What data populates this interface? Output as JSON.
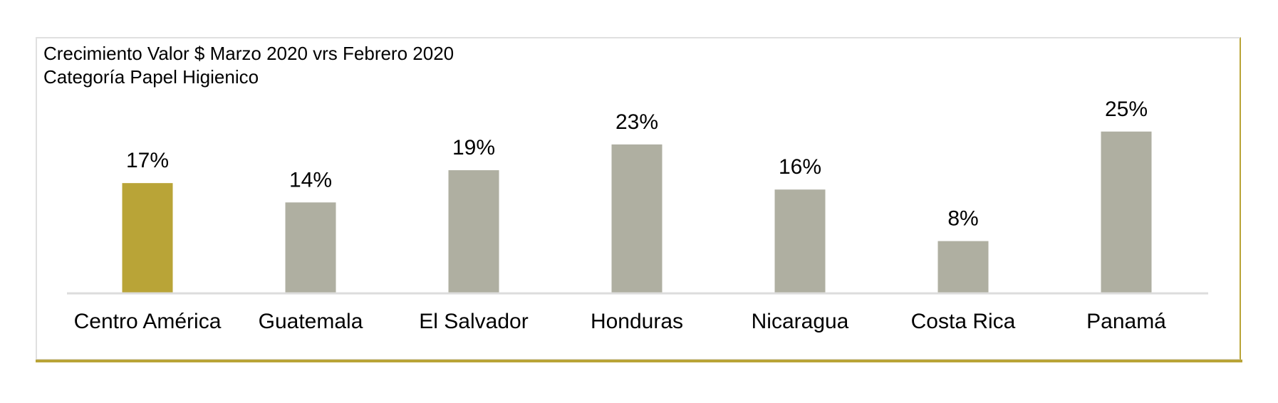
{
  "chart_data": {
    "type": "bar",
    "title": "Crecimiento Valor $ Marzo 2020 vrs Febrero 2020",
    "subtitle": "Categoría Papel Higienico",
    "categories": [
      "Centro América",
      "Guatemala",
      "El Salvador",
      "Honduras",
      "Nicaragua",
      "Costa Rica",
      "Panamá"
    ],
    "values": [
      17,
      14,
      19,
      23,
      16,
      8,
      25
    ],
    "data_labels": [
      "17%",
      "14%",
      "19%",
      "23%",
      "16%",
      "8%",
      "25%"
    ],
    "unit": "%",
    "ylim": [
      0,
      30
    ],
    "grid": false,
    "legend": "none",
    "colors": {
      "highlight": "#b9a437",
      "default": "#afafa1",
      "axis": "#dcdcdc"
    },
    "highlight_index": 0
  }
}
